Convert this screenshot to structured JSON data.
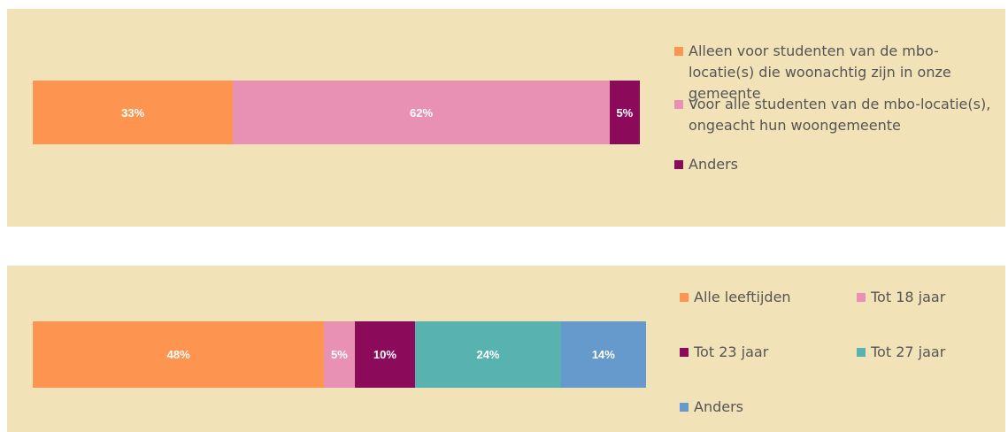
{
  "chart_data": [
    {
      "type": "bar",
      "orientation": "horizontal",
      "stacked": true,
      "legend": "right",
      "series": [
        {
          "name": "Alleen voor studenten van de mbo-locatie(s) die woonachtig zijn in onze gemeente",
          "color": "#fd9550",
          "values": [
            33
          ],
          "value_labels": [
            "33%"
          ]
        },
        {
          "name": "Voor alle studenten van de mbo-locatie(s), ongeacht hun woongemeente",
          "color": "#e991b5",
          "values": [
            62
          ],
          "value_labels": [
            "62%"
          ]
        },
        {
          "name": "Anders",
          "color": "#8b0a5a",
          "values": [
            5
          ],
          "value_labels": [
            "5%"
          ]
        }
      ]
    },
    {
      "type": "bar",
      "orientation": "horizontal",
      "stacked": true,
      "legend": "right",
      "series": [
        {
          "name": "Alle leeftijden",
          "color": "#fd9550",
          "values": [
            48
          ],
          "value_labels": [
            "48%"
          ]
        },
        {
          "name": "Tot 18 jaar",
          "color": "#e991b5",
          "values": [
            5
          ],
          "value_labels": [
            "5%"
          ]
        },
        {
          "name": "Tot 23 jaar",
          "color": "#8b0a5a",
          "values": [
            10
          ],
          "value_labels": [
            "10%"
          ]
        },
        {
          "name": "Tot 27 jaar",
          "color": "#58b2b0",
          "values": [
            24
          ],
          "value_labels": [
            "24%"
          ]
        },
        {
          "name": "Anders",
          "color": "#6699cc",
          "values": [
            14
          ],
          "value_labels": [
            "14%"
          ]
        }
      ]
    }
  ]
}
